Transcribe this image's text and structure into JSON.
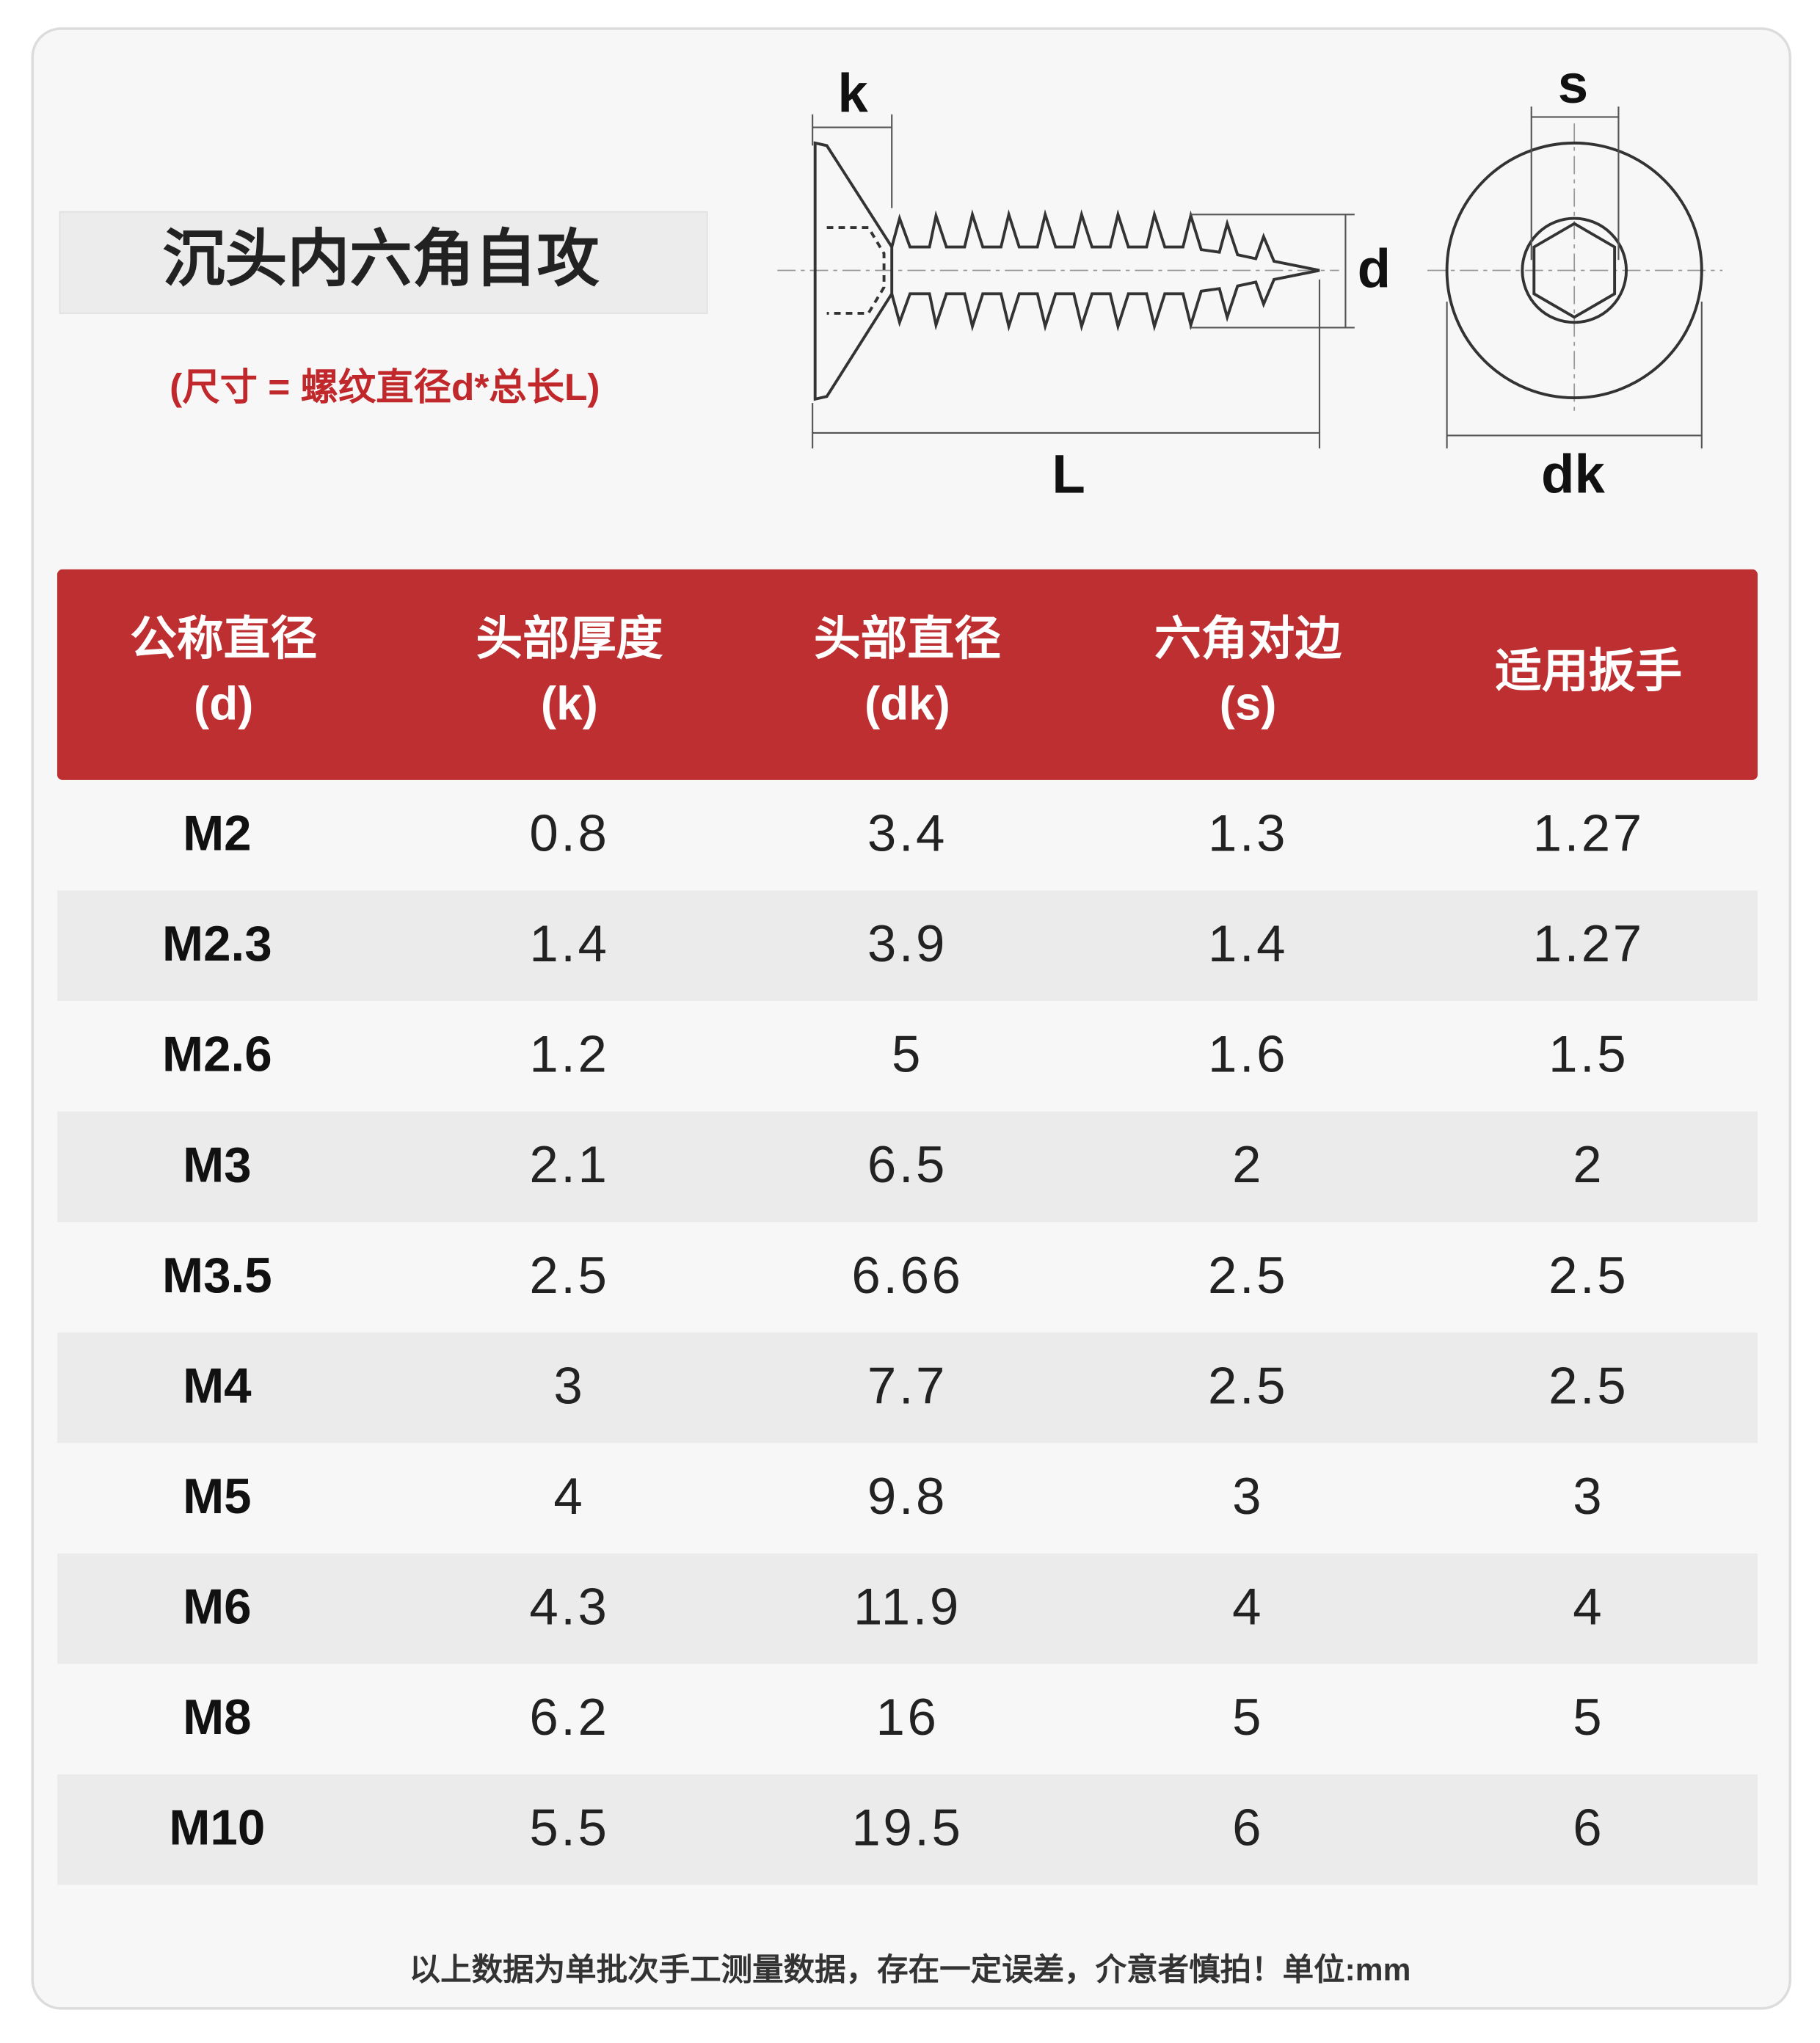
{
  "header": {
    "title": "沉头内六角自攻",
    "subtitle": "(尺寸 = 螺纹直径d*总长L)"
  },
  "diagram": {
    "labels": {
      "k": "k",
      "d": "d",
      "L": "L",
      "s": "s",
      "dk": "dk"
    }
  },
  "table": {
    "columns": [
      [
        "公称直径",
        "(d)"
      ],
      [
        "头部厚度",
        "(k)"
      ],
      [
        "头部直径",
        "(dk)"
      ],
      [
        "六角对边",
        "(s)"
      ],
      [
        "适用扳手"
      ]
    ],
    "rows": [
      [
        "M2",
        "0.8",
        "3.4",
        "1.3",
        "1.27"
      ],
      [
        "M2.3",
        "1.4",
        "3.9",
        "1.4",
        "1.27"
      ],
      [
        "M2.6",
        "1.2",
        "5",
        "1.6",
        "1.5"
      ],
      [
        "M3",
        "2.1",
        "6.5",
        "2",
        "2"
      ],
      [
        "M3.5",
        "2.5",
        "6.66",
        "2.5",
        "2.5"
      ],
      [
        "M4",
        "3",
        "7.7",
        "2.5",
        "2.5"
      ],
      [
        "M5",
        "4",
        "9.8",
        "3",
        "3"
      ],
      [
        "M6",
        "4.3",
        "11.9",
        "4",
        "4"
      ],
      [
        "M8",
        "6.2",
        "16",
        "5",
        "5"
      ],
      [
        "M10",
        "5.5",
        "19.5",
        "6",
        "6"
      ]
    ]
  },
  "footer": {
    "note": "以上数据为单批次手工测量数据，存在一定误差，介意者慎拍！单位:mm"
  }
}
